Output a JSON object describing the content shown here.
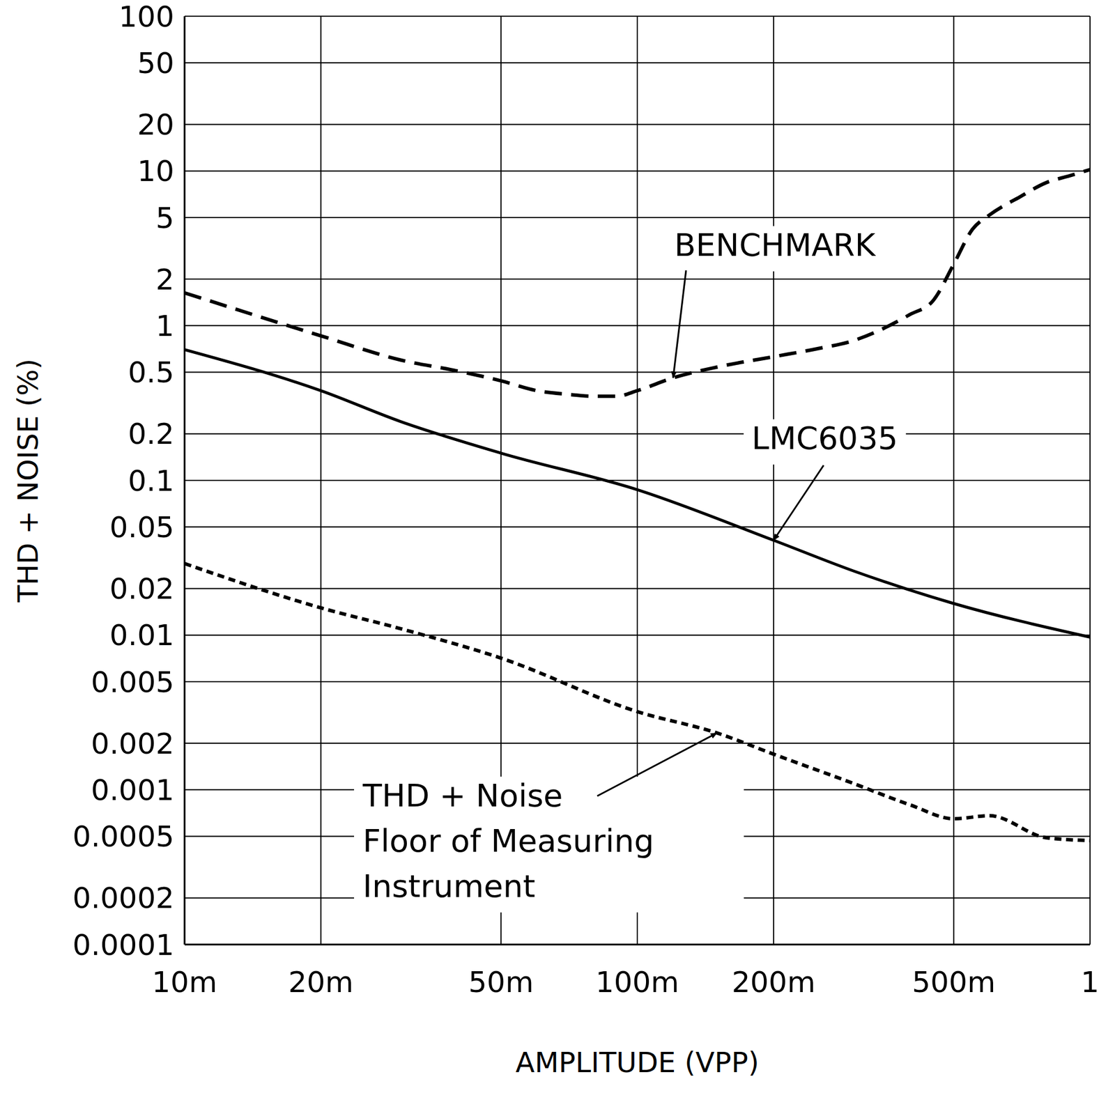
{
  "chart_data": {
    "type": "line",
    "xlabel": "AMPLITUDE (VPP)",
    "ylabel": "THD + NOISE (%)",
    "log": true,
    "grid": true,
    "xlim": [
      0.01,
      1
    ],
    "xticks": [
      {
        "value": 0.01,
        "label": "10m"
      },
      {
        "value": 0.02,
        "label": "20m"
      },
      {
        "value": 0.05,
        "label": "50m"
      },
      {
        "value": 0.1,
        "label": "100m"
      },
      {
        "value": 0.2,
        "label": "200m"
      },
      {
        "value": 0.5,
        "label": "500m"
      },
      1
    ],
    "ylim": [
      0.0001,
      100
    ],
    "yticks": [
      0.0001,
      0.0002,
      0.0005,
      0.001,
      0.002,
      0.005,
      0.01,
      0.02,
      0.05,
      0.1,
      0.2,
      0.5,
      1,
      2,
      5,
      10,
      20,
      50,
      100
    ],
    "series": [
      {
        "name": "BENCHMARK",
        "color": "#000000",
        "line_style": "dashed",
        "x": [
          0.01,
          0.02,
          0.03,
          0.04,
          0.05,
          0.06,
          0.07,
          0.08,
          0.09,
          0.1,
          0.12,
          0.15,
          0.2,
          0.25,
          0.3,
          0.35,
          0.4,
          0.45,
          0.5,
          0.55,
          0.6,
          0.7,
          0.8,
          0.9,
          1
        ],
        "values": [
          1.63,
          0.86,
          0.6,
          0.51,
          0.44,
          0.38,
          0.36,
          0.35,
          0.35,
          0.38,
          0.46,
          0.54,
          0.63,
          0.71,
          0.8,
          0.96,
          1.18,
          1.45,
          2.5,
          4.2,
          5.2,
          6.8,
          8.4,
          9.3,
          10.2
        ]
      },
      {
        "name": "LMC6035",
        "color": "#000000",
        "line_style": "solid",
        "x": [
          0.01,
          0.02,
          0.03,
          0.05,
          0.1,
          0.2,
          0.3,
          0.5,
          1
        ],
        "values": [
          0.7,
          0.38,
          0.24,
          0.15,
          0.087,
          0.041,
          0.026,
          0.016,
          0.0097
        ]
      },
      {
        "name": "THD + Noise Floor of Measuring Instrument",
        "color": "#000000",
        "line_style": "dotted",
        "x": [
          0.01,
          0.02,
          0.03,
          0.05,
          0.1,
          0.15,
          0.2,
          0.3,
          0.4,
          0.5,
          0.6,
          0.8,
          1
        ],
        "values": [
          0.029,
          0.015,
          0.011,
          0.0071,
          0.0032,
          0.00233,
          0.0017,
          0.0011,
          0.0008,
          0.00065,
          0.00068,
          0.00049,
          0.00047
        ]
      }
    ]
  }
}
